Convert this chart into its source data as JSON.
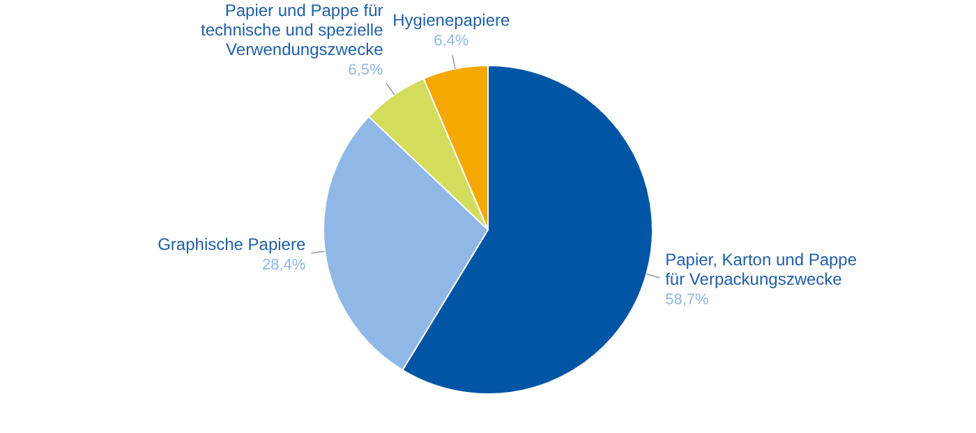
{
  "chart_data": {
    "type": "pie",
    "categories": [
      "Papier, Karton und Pappe für Verpackungszwecke",
      "Graphische Papiere",
      "Papier und Pappe für technische und spezielle Verwendungszwecke",
      "Hygienepapiere"
    ],
    "values": [
      58.7,
      28.4,
      6.5,
      6.4
    ],
    "colors": [
      "#0055a4",
      "#8fb8e6",
      "#d4dc5c",
      "#f5a800"
    ],
    "value_labels": [
      "58,7%",
      "28,4%",
      "6,5%",
      "6,4%"
    ]
  }
}
